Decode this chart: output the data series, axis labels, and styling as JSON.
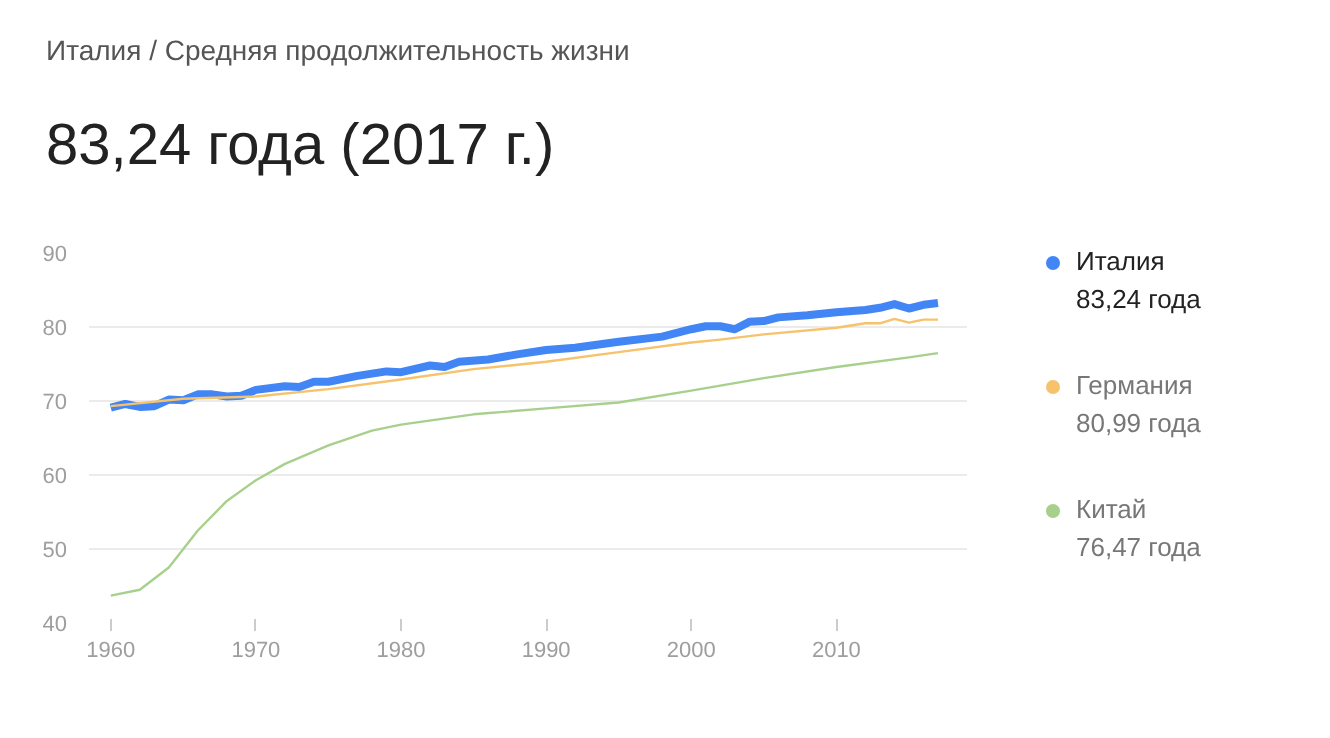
{
  "chart_data": {
    "type": "line",
    "subtitle": "Италия / Средняя продолжительность жизни",
    "title": "83,24 года (2017 г.)",
    "xlim": [
      1958.5,
      2019
    ],
    "xticks": [
      1960,
      1970,
      1980,
      1990,
      2000,
      2010
    ],
    "ylim": [
      40,
      90
    ],
    "yticks": [
      40,
      50,
      60,
      70,
      80,
      90
    ],
    "grid": "y",
    "legend": "right",
    "annotations": [
      "83,24 года",
      "80,99 года",
      "76,47 года"
    ],
    "series": [
      {
        "name": "Италия",
        "color": "#4285f4",
        "x": [
          1960,
          1961,
          1962,
          1963,
          1964,
          1965,
          1966,
          1967,
          1968,
          1969,
          1970,
          1972,
          1973,
          1974,
          1975,
          1977,
          1979,
          1980,
          1982,
          1983,
          1984,
          1986,
          1988,
          1990,
          1992,
          1995,
          1998,
          2000,
          2001,
          2002,
          2003,
          2004,
          2005,
          2006,
          2008,
          2010,
          2012,
          2013,
          2014,
          2015,
          2016,
          2017
        ],
        "values": [
          69.1,
          69.6,
          69.2,
          69.3,
          70.2,
          70.1,
          70.9,
          70.9,
          70.6,
          70.7,
          71.5,
          72.0,
          71.9,
          72.6,
          72.6,
          73.4,
          74.0,
          73.9,
          74.8,
          74.6,
          75.3,
          75.6,
          76.3,
          76.9,
          77.2,
          78.0,
          78.7,
          79.7,
          80.1,
          80.1,
          79.7,
          80.7,
          80.8,
          81.3,
          81.6,
          82.0,
          82.3,
          82.6,
          83.1,
          82.5,
          83.0,
          83.24
        ]
      },
      {
        "name": "Германия",
        "color": "#f6c26b",
        "x": [
          1960,
          1965,
          1970,
          1975,
          1980,
          1985,
          1990,
          1995,
          2000,
          2002,
          2005,
          2010,
          2012,
          2013,
          2014,
          2015,
          2016,
          2017
        ],
        "values": [
          69.3,
          70.3,
          70.6,
          71.6,
          72.9,
          74.3,
          75.3,
          76.6,
          77.9,
          78.3,
          79.0,
          79.9,
          80.5,
          80.5,
          81.1,
          80.6,
          81.0,
          80.99
        ]
      },
      {
        "name": "Китай",
        "color": "#a8d08d",
        "x": [
          1960,
          1962,
          1964,
          1966,
          1968,
          1970,
          1972,
          1975,
          1978,
          1980,
          1985,
          1990,
          1995,
          2000,
          2005,
          2010,
          2015,
          2017
        ],
        "values": [
          43.7,
          44.5,
          47.5,
          52.5,
          56.5,
          59.3,
          61.5,
          64.0,
          66.0,
          66.8,
          68.2,
          69.0,
          69.8,
          71.4,
          73.1,
          74.6,
          75.9,
          76.47
        ]
      }
    ]
  }
}
